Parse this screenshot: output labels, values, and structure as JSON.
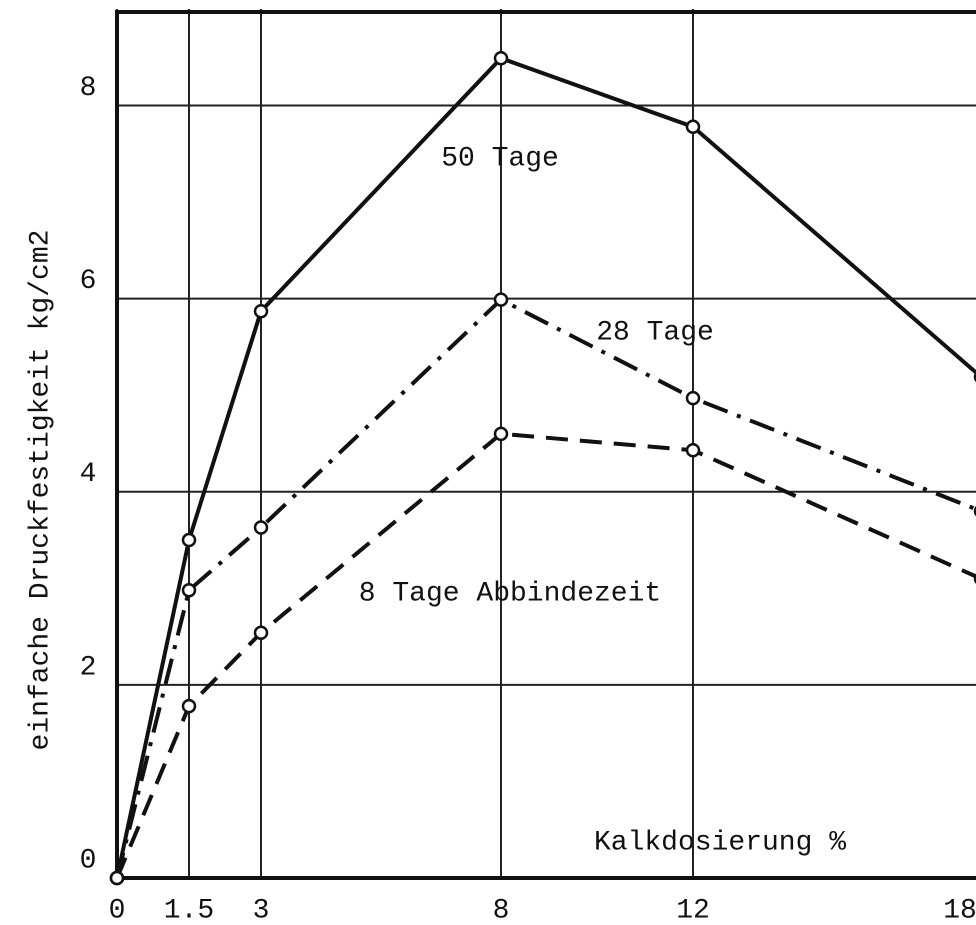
{
  "chart_data": {
    "type": "line",
    "x_label": "Kalkdosierung  %",
    "y_label": "einfache Druckfestigkeit  kg/cm2",
    "xlim": [
      0,
      18
    ],
    "ylim": [
      0,
      9
    ],
    "xticks": [
      0,
      1.5,
      3,
      8,
      12,
      18
    ],
    "yticks": [
      0,
      2,
      4,
      6,
      8
    ],
    "grid": true,
    "series": [
      {
        "name": "50 Tage",
        "color": "#111111",
        "dash": "solid",
        "x": [
          0,
          1.5,
          3,
          8,
          12,
          18
        ],
        "values": [
          0,
          3.5,
          5.87,
          8.49,
          7.78,
          5.19
        ]
      },
      {
        "name": "28 Tage",
        "color": "#111111",
        "dash": "dash-dot",
        "x": [
          0,
          1.5,
          3,
          8,
          12,
          18
        ],
        "values": [
          0,
          2.98,
          3.63,
          5.99,
          4.97,
          3.8
        ]
      },
      {
        "name": "8 Tage Abbindezeit",
        "color": "#111111",
        "dash": "dashed",
        "x": [
          0,
          1.5,
          3,
          8,
          12,
          18
        ],
        "values": [
          0,
          1.78,
          2.54,
          4.6,
          4.43,
          3.1
        ]
      }
    ]
  }
}
